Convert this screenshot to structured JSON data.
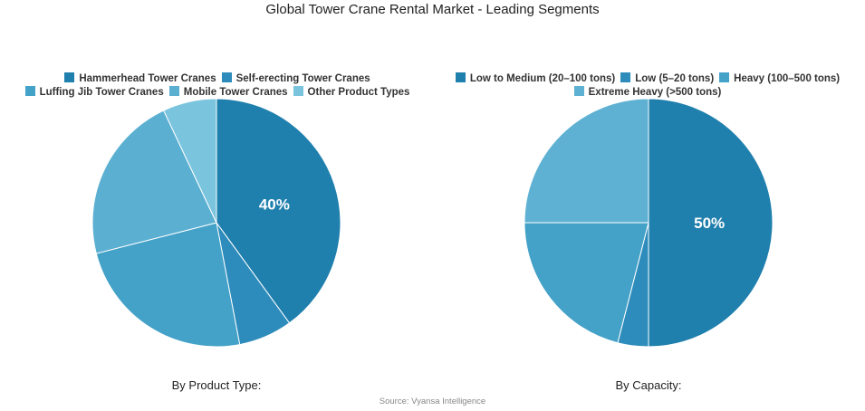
{
  "title": "Global Tower Crane Rental Market - Leading Segments",
  "source": "Source: Vyansa Intelligence",
  "chart_data": [
    {
      "type": "pie",
      "subtitle": "By Product Type:",
      "categories": [
        "Hammerhead Tower Cranes",
        "Self-erecting Tower Cranes",
        "Luffing Jib Tower Cranes",
        "Mobile Tower Cranes",
        "Other Product Types"
      ],
      "values": [
        40,
        7,
        24,
        22,
        7
      ],
      "colors": [
        "#1f7fad",
        "#2d8cbb",
        "#44a1c8",
        "#5bb0d2",
        "#7ac4de"
      ],
      "data_labels": [
        "40%",
        "",
        "",
        "",
        ""
      ],
      "legend_position": "top"
    },
    {
      "type": "pie",
      "subtitle": "By Capacity:",
      "categories": [
        "Low to Medium (20–100 tons)",
        "Low (5–20 tons)",
        "Heavy (100–500 tons)",
        "Extreme Heavy (>500 tons)"
      ],
      "values": [
        50,
        4,
        21,
        25
      ],
      "colors": [
        "#1f7fad",
        "#2d8cbb",
        "#44a1c8",
        "#5eb1d2"
      ],
      "data_labels": [
        "50%",
        "",
        "",
        ""
      ],
      "legend_position": "top"
    }
  ]
}
